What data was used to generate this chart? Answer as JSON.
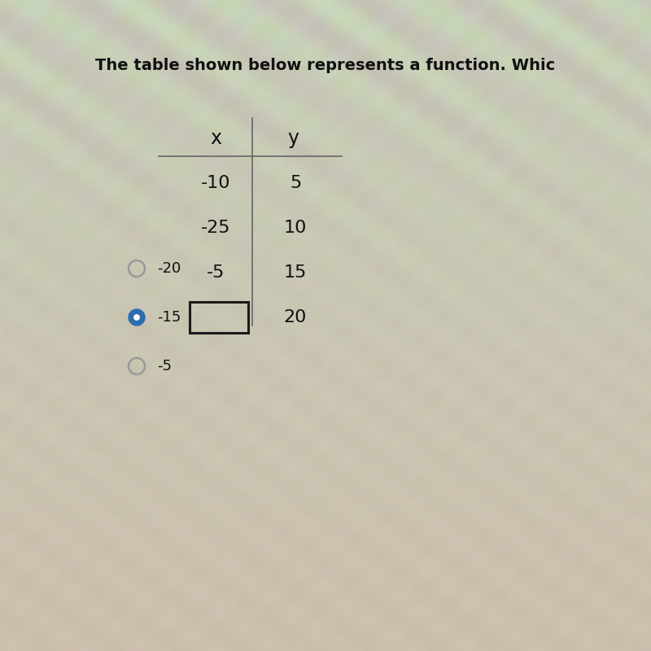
{
  "title": "The table shown below represents a function. Whic",
  "title_fontsize": 14,
  "col_headers": [
    "x",
    "y"
  ],
  "rows": [
    [
      "-10",
      "5"
    ],
    [
      "-25",
      "10"
    ],
    [
      "-5",
      "15"
    ],
    [
      "",
      "20"
    ]
  ],
  "last_row_box": true,
  "options": [
    {
      "label": "-20",
      "selected": false
    },
    {
      "label": "-15",
      "selected": true
    },
    {
      "label": "-5",
      "selected": false
    }
  ],
  "selected_color": "#2b6cb0",
  "unselected_color": "#999999",
  "bg_color_top": "#c8bfb0",
  "bg_color": "#c9c0b2",
  "text_color": "#111111"
}
